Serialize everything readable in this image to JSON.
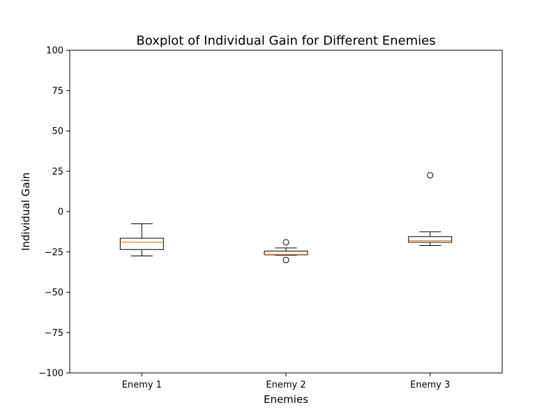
{
  "chart_data": {
    "type": "boxplot",
    "title": "Boxplot of Individual Gain for Different Enemies",
    "xlabel": "Enemies",
    "ylabel": "Individual Gain",
    "ylim": [
      -100,
      100
    ],
    "yticks": [
      -100,
      -75,
      -50,
      -25,
      0,
      25,
      50,
      75,
      100
    ],
    "ytick_labels": [
      "−100",
      "−75",
      "−50",
      "−25",
      "0",
      "25",
      "50",
      "75",
      "100"
    ],
    "categories": [
      "Enemy 1",
      "Enemy 2",
      "Enemy 3"
    ],
    "grid": false,
    "boxes": [
      {
        "whisker_low": -27.5,
        "q1": -23.5,
        "median": -19.0,
        "q3": -16.5,
        "whisker_high": -7.5,
        "outliers": []
      },
      {
        "whisker_low": -27.0,
        "q1": -26.8,
        "median": -26.5,
        "q3": -24.5,
        "whisker_high": -22.5,
        "outliers": [
          -19.0,
          -30.0
        ]
      },
      {
        "whisker_low": -21.0,
        "q1": -19.0,
        "median": -18.0,
        "q3": -15.5,
        "whisker_high": -12.5,
        "outliers": [
          22.5
        ]
      }
    ],
    "colors": {
      "box": "#000000",
      "median": "#ff7f0e",
      "outlier": "#000000"
    }
  }
}
